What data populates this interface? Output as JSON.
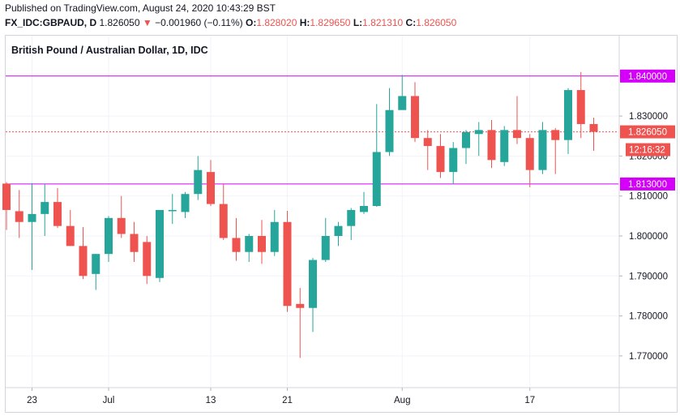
{
  "header": {
    "published_line": "Published on TradingView.com, August 24, 2020 10:43:29 BST",
    "symbol": "FX_IDC:GBPAUD, D",
    "price": "1.826050",
    "change": "−0.001960 (−0.11%)",
    "open_label": "O:",
    "open": "1.828020",
    "high_label": "H:",
    "high": "1.829650",
    "low_label": "L:",
    "low": "1.821310",
    "close_label": "C:",
    "close": "1.826050"
  },
  "colors": {
    "up": "#26a69a",
    "down": "#ef5350",
    "level_line": "#d500f9",
    "last_price": "#ef5350",
    "grid": "#f0f3fa",
    "axis_text": "#131722"
  },
  "chart_data": {
    "type": "candlestick",
    "title": "British Pound / Australian Dollar, 1D, IDC",
    "ylim": [
      1.7625,
      1.8505
    ],
    "y_ticks": [
      "1.830000",
      "1.820000",
      "1.810000",
      "1.800000",
      "1.790000",
      "1.780000",
      "1.770000"
    ],
    "x_ticks": [
      {
        "label": "23",
        "index": 2
      },
      {
        "label": "Jul",
        "index": 8
      },
      {
        "label": "13",
        "index": 16
      },
      {
        "label": "21",
        "index": 22
      },
      {
        "label": "Aug",
        "index": 31
      },
      {
        "label": "17",
        "index": 41
      }
    ],
    "horizontal_levels": [
      {
        "value": 1.84,
        "label": "1.840000"
      },
      {
        "value": 1.813,
        "label": "1.813000"
      }
    ],
    "last_price": {
      "value": 1.82605,
      "label": "1.826050",
      "countdown": "12:16:32"
    },
    "candles": [
      {
        "o": 1.8131,
        "h": 1.8135,
        "l": 1.8015,
        "c": 1.8065
      },
      {
        "o": 1.8062,
        "h": 1.8115,
        "l": 1.7995,
        "c": 1.8035
      },
      {
        "o": 1.8035,
        "h": 1.8132,
        "l": 1.7915,
        "c": 1.8055
      },
      {
        "o": 1.8055,
        "h": 1.813,
        "l": 1.8,
        "c": 1.8085
      },
      {
        "o": 1.8085,
        "h": 1.812,
        "l": 1.802,
        "c": 1.8025
      },
      {
        "o": 1.8025,
        "h": 1.8065,
        "l": 1.7975,
        "c": 1.7975
      },
      {
        "o": 1.7975,
        "h": 1.8022,
        "l": 1.7892,
        "c": 1.79
      },
      {
        "o": 1.7905,
        "h": 1.7955,
        "l": 1.7865,
        "c": 1.7955
      },
      {
        "o": 1.7955,
        "h": 1.805,
        "l": 1.7935,
        "c": 1.8045
      },
      {
        "o": 1.8045,
        "h": 1.81,
        "l": 1.7995,
        "c": 1.8005
      },
      {
        "o": 1.8005,
        "h": 1.8035,
        "l": 1.7935,
        "c": 1.796
      },
      {
        "o": 1.7985,
        "h": 1.8,
        "l": 1.788,
        "c": 1.79
      },
      {
        "o": 1.7895,
        "h": 1.8065,
        "l": 1.7885,
        "c": 1.8065
      },
      {
        "o": 1.8065,
        "h": 1.8105,
        "l": 1.803,
        "c": 1.8065
      },
      {
        "o": 1.806,
        "h": 1.811,
        "l": 1.8045,
        "c": 1.8105
      },
      {
        "o": 1.8105,
        "h": 1.82,
        "l": 1.809,
        "c": 1.8165
      },
      {
        "o": 1.816,
        "h": 1.819,
        "l": 1.8075,
        "c": 1.808
      },
      {
        "o": 1.808,
        "h": 1.813,
        "l": 1.799,
        "c": 1.7995
      },
      {
        "o": 1.7995,
        "h": 1.8045,
        "l": 1.7938,
        "c": 1.796
      },
      {
        "o": 1.796,
        "h": 1.8005,
        "l": 1.7935,
        "c": 1.8
      },
      {
        "o": 1.8,
        "h": 1.804,
        "l": 1.793,
        "c": 1.796
      },
      {
        "o": 1.796,
        "h": 1.8065,
        "l": 1.795,
        "c": 1.8035
      },
      {
        "o": 1.8035,
        "h": 1.8063,
        "l": 1.781,
        "c": 1.7825
      },
      {
        "o": 1.783,
        "h": 1.787,
        "l": 1.7695,
        "c": 1.782
      },
      {
        "o": 1.782,
        "h": 1.7945,
        "l": 1.776,
        "c": 1.794
      },
      {
        "o": 1.794,
        "h": 1.8045,
        "l": 1.7935,
        "c": 1.8
      },
      {
        "o": 1.8,
        "h": 1.8035,
        "l": 1.7975,
        "c": 1.8025
      },
      {
        "o": 1.8025,
        "h": 1.807,
        "l": 1.799,
        "c": 1.8065
      },
      {
        "o": 1.806,
        "h": 1.811,
        "l": 1.8055,
        "c": 1.8075
      },
      {
        "o": 1.8075,
        "h": 1.833,
        "l": 1.8073,
        "c": 1.821
      },
      {
        "o": 1.821,
        "h": 1.837,
        "l": 1.82,
        "c": 1.8315
      },
      {
        "o": 1.8315,
        "h": 1.8403,
        "l": 1.832,
        "c": 1.835
      },
      {
        "o": 1.835,
        "h": 1.8385,
        "l": 1.8235,
        "c": 1.8245
      },
      {
        "o": 1.8245,
        "h": 1.8265,
        "l": 1.8165,
        "c": 1.8225
      },
      {
        "o": 1.8225,
        "h": 1.8255,
        "l": 1.8145,
        "c": 1.816
      },
      {
        "o": 1.816,
        "h": 1.8235,
        "l": 1.813,
        "c": 1.822
      },
      {
        "o": 1.822,
        "h": 1.8265,
        "l": 1.818,
        "c": 1.826
      },
      {
        "o": 1.8255,
        "h": 1.8285,
        "l": 1.82,
        "c": 1.8265
      },
      {
        "o": 1.8265,
        "h": 1.829,
        "l": 1.817,
        "c": 1.819
      },
      {
        "o": 1.8185,
        "h": 1.8275,
        "l": 1.8175,
        "c": 1.8265
      },
      {
        "o": 1.8265,
        "h": 1.835,
        "l": 1.823,
        "c": 1.8245
      },
      {
        "o": 1.8245,
        "h": 1.8255,
        "l": 1.8122,
        "c": 1.8165
      },
      {
        "o": 1.8165,
        "h": 1.8285,
        "l": 1.8155,
        "c": 1.8265
      },
      {
        "o": 1.8265,
        "h": 1.827,
        "l": 1.8155,
        "c": 1.824
      },
      {
        "o": 1.824,
        "h": 1.837,
        "l": 1.8205,
        "c": 1.8365
      },
      {
        "o": 1.8365,
        "h": 1.841,
        "l": 1.8245,
        "c": 1.828
      },
      {
        "o": 1.828,
        "h": 1.8296,
        "l": 1.8213,
        "c": 1.82605
      }
    ]
  }
}
